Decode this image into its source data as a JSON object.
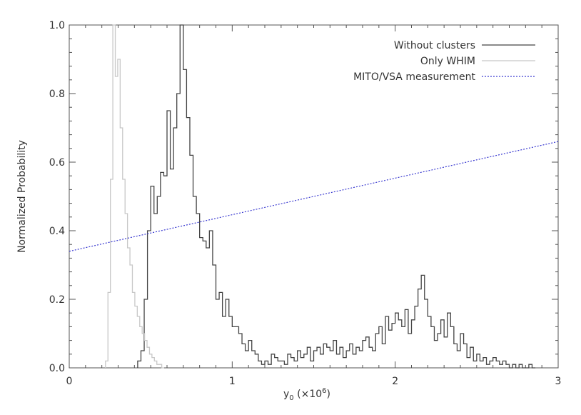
{
  "chart_data": {
    "type": "line",
    "title": "",
    "xlabel": "y",
    "xlabel_sub": "0",
    "xlabel_unit_prefix": " (×10",
    "xlabel_unit_exp": "6",
    "xlabel_unit_suffix": ")",
    "ylabel": "Normalized Probability",
    "xlim": [
      0,
      3
    ],
    "ylim": [
      0,
      1
    ],
    "xticks": [
      0,
      1,
      2,
      3
    ],
    "xtick_labels": [
      "0",
      "1",
      "2",
      "3"
    ],
    "yticks": [
      0,
      0.2,
      0.4,
      0.6,
      0.8,
      1.0
    ],
    "ytick_labels": [
      "0.0",
      "0.2",
      "0.4",
      "0.6",
      "0.8",
      "1.0"
    ],
    "grid": false,
    "legend_position": "top-right",
    "series": [
      {
        "name": "Without clusters",
        "style": "histogram",
        "color": "#444444",
        "x": [
          0.43,
          0.45,
          0.47,
          0.49,
          0.51,
          0.53,
          0.55,
          0.57,
          0.59,
          0.61,
          0.63,
          0.65,
          0.67,
          0.69,
          0.71,
          0.73,
          0.75,
          0.77,
          0.79,
          0.81,
          0.83,
          0.85,
          0.87,
          0.89,
          0.91,
          0.93,
          0.95,
          0.97,
          0.99,
          1.01,
          1.03,
          1.05,
          1.07,
          1.09,
          1.11,
          1.13,
          1.15,
          1.17,
          1.19,
          1.21,
          1.23,
          1.25,
          1.27,
          1.29,
          1.31,
          1.33,
          1.35,
          1.37,
          1.39,
          1.41,
          1.43,
          1.45,
          1.47,
          1.49,
          1.51,
          1.53,
          1.55,
          1.57,
          1.59,
          1.61,
          1.63,
          1.65,
          1.67,
          1.69,
          1.71,
          1.73,
          1.75,
          1.77,
          1.79,
          1.81,
          1.83,
          1.85,
          1.87,
          1.89,
          1.91,
          1.93,
          1.95,
          1.97,
          1.99,
          2.01,
          2.03,
          2.05,
          2.07,
          2.09,
          2.11,
          2.13,
          2.15,
          2.17,
          2.19,
          2.21,
          2.23,
          2.25,
          2.27,
          2.29,
          2.31,
          2.33,
          2.35,
          2.37,
          2.39,
          2.41,
          2.43,
          2.45,
          2.47,
          2.49,
          2.51,
          2.53,
          2.55,
          2.57,
          2.59,
          2.61,
          2.63,
          2.65,
          2.67,
          2.69,
          2.71,
          2.73,
          2.75,
          2.77,
          2.79,
          2.81,
          2.83,
          2.85
        ],
        "values": [
          0.02,
          0.05,
          0.2,
          0.4,
          0.53,
          0.45,
          0.5,
          0.57,
          0.56,
          0.75,
          0.58,
          0.7,
          0.8,
          1.0,
          0.87,
          0.73,
          0.62,
          0.5,
          0.45,
          0.38,
          0.37,
          0.35,
          0.4,
          0.3,
          0.2,
          0.22,
          0.15,
          0.2,
          0.15,
          0.12,
          0.12,
          0.1,
          0.07,
          0.05,
          0.08,
          0.05,
          0.04,
          0.02,
          0.01,
          0.02,
          0.01,
          0.04,
          0.03,
          0.02,
          0.02,
          0.01,
          0.04,
          0.03,
          0.02,
          0.05,
          0.03,
          0.04,
          0.06,
          0.02,
          0.05,
          0.06,
          0.04,
          0.07,
          0.06,
          0.05,
          0.08,
          0.04,
          0.06,
          0.03,
          0.05,
          0.07,
          0.04,
          0.06,
          0.05,
          0.08,
          0.09,
          0.06,
          0.05,
          0.1,
          0.12,
          0.07,
          0.15,
          0.11,
          0.13,
          0.16,
          0.14,
          0.12,
          0.17,
          0.1,
          0.14,
          0.18,
          0.23,
          0.27,
          0.2,
          0.15,
          0.12,
          0.08,
          0.1,
          0.14,
          0.09,
          0.16,
          0.12,
          0.07,
          0.05,
          0.1,
          0.07,
          0.03,
          0.06,
          0.02,
          0.04,
          0.02,
          0.03,
          0.01,
          0.02,
          0.03,
          0.02,
          0.01,
          0.02,
          0.01,
          0.0,
          0.01,
          0.0,
          0.01,
          0.0,
          0.0,
          0.01,
          0.0
        ]
      },
      {
        "name": "Only WHIM",
        "style": "histogram",
        "color": "#c8c8c8",
        "x": [
          0.23,
          0.245,
          0.26,
          0.275,
          0.29,
          0.305,
          0.32,
          0.335,
          0.35,
          0.365,
          0.38,
          0.395,
          0.41,
          0.425,
          0.44,
          0.455,
          0.47,
          0.485,
          0.5,
          0.515,
          0.53,
          0.545,
          0.56,
          0.575
        ],
        "values": [
          0.02,
          0.22,
          0.55,
          1.0,
          0.85,
          0.9,
          0.7,
          0.55,
          0.45,
          0.35,
          0.3,
          0.22,
          0.18,
          0.15,
          0.12,
          0.1,
          0.08,
          0.06,
          0.04,
          0.03,
          0.02,
          0.01,
          0.01,
          0.0
        ]
      },
      {
        "name": "MITO/VSA measurement",
        "style": "dotted",
        "color": "#3a3ad0",
        "x": [
          0,
          3
        ],
        "values": [
          0.34,
          0.66
        ]
      }
    ]
  }
}
